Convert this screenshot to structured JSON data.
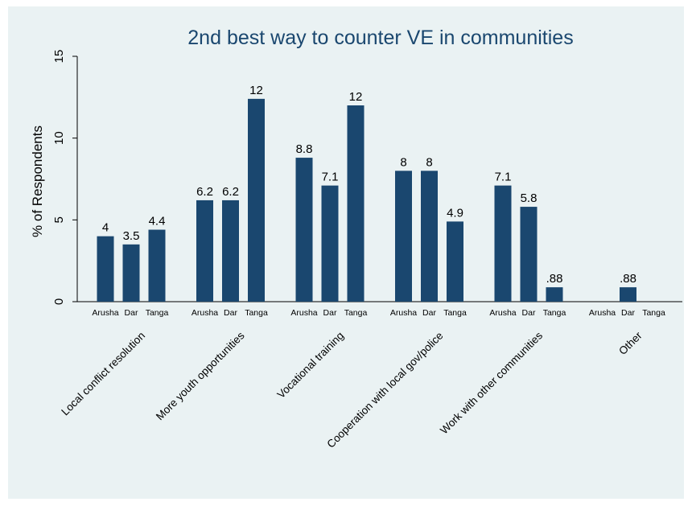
{
  "chart_data": {
    "type": "bar",
    "title": "2nd best way to counter VE in communities",
    "xlabel": "",
    "ylabel": "% of Respondents",
    "ylim": [
      0,
      15
    ],
    "yticks": [
      0,
      5,
      10,
      15
    ],
    "grid": false,
    "bar_color": "#1a476f",
    "title_color": "#1a476f",
    "background_color": "#eaf2f3",
    "groups": [
      "Arusha",
      "Dar",
      "Tanga"
    ],
    "categories": [
      "Local conflict resolution",
      "More youth opportunities",
      "Vocational training",
      "Cooperation with local gov/police",
      "Work with other communities",
      "Other"
    ],
    "values": [
      [
        4,
        3.5,
        4.4
      ],
      [
        6.2,
        6.2,
        12.4
      ],
      [
        8.8,
        7.1,
        12
      ],
      [
        8,
        8,
        4.9
      ],
      [
        7.1,
        5.8,
        0.88
      ],
      [
        null,
        0.88,
        null
      ]
    ],
    "value_labels": [
      [
        "4",
        "3.5",
        "4.4"
      ],
      [
        "6.2",
        "6.2",
        "12"
      ],
      [
        "8.8",
        "7.1",
        "12"
      ],
      [
        "8",
        "8",
        "4.9"
      ],
      [
        "7.1",
        "5.8",
        ".88"
      ],
      [
        "",
        ".88",
        ""
      ]
    ]
  }
}
